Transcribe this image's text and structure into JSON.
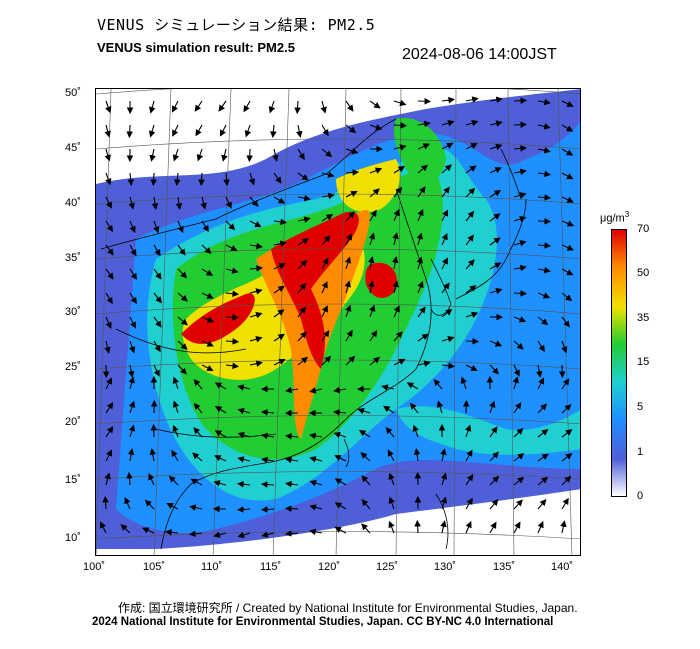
{
  "header": {
    "title_jp": "VENUS シミュレーション結果: PM2.5",
    "title_en": "VENUS simulation result: PM2.5",
    "timestamp": "2024-08-06 14:00JST"
  },
  "map": {
    "lon_ticks": [
      "100˚",
      "105˚",
      "110˚",
      "115˚",
      "120˚",
      "125˚",
      "130˚",
      "135˚",
      "140˚"
    ],
    "lat_ticks": [
      "50˚",
      "45˚",
      "40˚",
      "35˚",
      "30˚",
      "25˚",
      "20˚",
      "15˚",
      "10˚"
    ],
    "extent": {
      "lon": [
        100,
        141
      ],
      "lat": [
        9,
        51
      ]
    }
  },
  "colorbar": {
    "unit": "μg/m",
    "unit_sup": "3",
    "levels": [
      "70",
      "50",
      "35",
      "15",
      "5",
      "1",
      "0"
    ],
    "colors": [
      "#ffffff",
      "#4e5fd8",
      "#1e90ff",
      "#20d0d0",
      "#22cc33",
      "#f0e000",
      "#ff8c00",
      "#e00000"
    ]
  },
  "footer": {
    "credit": "作成: 国立環境研究所 / Created by National Institute for Environmental Studies, Japan.",
    "copyright": "2024 National Institute for Environmental Studies, Japan. CC BY-NC 4.0 International"
  }
}
